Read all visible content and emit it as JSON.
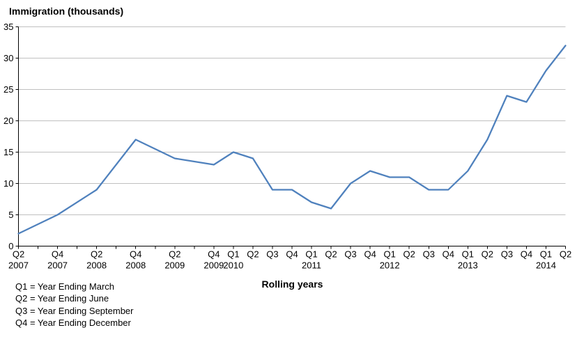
{
  "title": "Immigration (thousands)",
  "x_axis_title": "Rolling years",
  "footnotes": [
    "Q1 = Year Ending March",
    "Q2 = Year Ending June",
    "Q3 = Year Ending September",
    "Q4 = Year Ending December"
  ],
  "colors": {
    "line": "#4F81BD",
    "gridline": "#C0C0C0",
    "axis": "#000000",
    "text": "#000000",
    "background": "#FFFFFF"
  },
  "chart_data": {
    "type": "line",
    "title": "Immigration (thousands)",
    "xlabel": "Rolling years",
    "ylabel": "Immigration (thousands)",
    "ylim": [
      0,
      35
    ],
    "yticks": [
      0,
      5,
      10,
      15,
      20,
      25,
      30,
      35
    ],
    "grid": true,
    "legend": "none",
    "x_quarter_count": 29,
    "x_tick_labels": [
      {
        "q": "Q2",
        "year": "2007"
      },
      {
        "q": "",
        "year": ""
      },
      {
        "q": "Q4",
        "year": "2007"
      },
      {
        "q": "",
        "year": ""
      },
      {
        "q": "Q2",
        "year": "2008"
      },
      {
        "q": "",
        "year": ""
      },
      {
        "q": "Q4",
        "year": "2008"
      },
      {
        "q": "",
        "year": ""
      },
      {
        "q": "Q2",
        "year": "2009"
      },
      {
        "q": "",
        "year": ""
      },
      {
        "q": "Q4",
        "year": "2009"
      },
      {
        "q": "Q1",
        "year": "2010"
      },
      {
        "q": "Q2",
        "year": ""
      },
      {
        "q": "Q3",
        "year": ""
      },
      {
        "q": "Q4",
        "year": ""
      },
      {
        "q": "Q1",
        "year": "2011"
      },
      {
        "q": "Q2",
        "year": ""
      },
      {
        "q": "Q3",
        "year": ""
      },
      {
        "q": "Q4",
        "year": ""
      },
      {
        "q": "Q1",
        "year": "2012"
      },
      {
        "q": "Q2",
        "year": ""
      },
      {
        "q": "Q3",
        "year": ""
      },
      {
        "q": "Q4",
        "year": ""
      },
      {
        "q": "Q1",
        "year": "2013"
      },
      {
        "q": "Q2",
        "year": ""
      },
      {
        "q": "Q3",
        "year": ""
      },
      {
        "q": "Q4",
        "year": ""
      },
      {
        "q": "Q1",
        "year": "2014"
      },
      {
        "q": "Q2",
        "year": ""
      }
    ],
    "series": [
      {
        "name": "Immigration (thousands)",
        "points": [
          {
            "x": 0,
            "period": "Q2 2007",
            "value": 2
          },
          {
            "x": 2,
            "period": "Q4 2007",
            "value": 5
          },
          {
            "x": 4,
            "period": "Q2 2008",
            "value": 9
          },
          {
            "x": 6,
            "period": "Q4 2008",
            "value": 17
          },
          {
            "x": 8,
            "period": "Q2 2009",
            "value": 14
          },
          {
            "x": 10,
            "period": "Q4 2009",
            "value": 13
          },
          {
            "x": 11,
            "period": "Q1 2010",
            "value": 15
          },
          {
            "x": 12,
            "period": "Q2 2010",
            "value": 14
          },
          {
            "x": 13,
            "period": "Q3 2010",
            "value": 9
          },
          {
            "x": 14,
            "period": "Q4 2010",
            "value": 9
          },
          {
            "x": 15,
            "period": "Q1 2011",
            "value": 7
          },
          {
            "x": 16,
            "period": "Q2 2011",
            "value": 6
          },
          {
            "x": 17,
            "period": "Q3 2011",
            "value": 10
          },
          {
            "x": 18,
            "period": "Q4 2011",
            "value": 12
          },
          {
            "x": 19,
            "period": "Q1 2012",
            "value": 11
          },
          {
            "x": 20,
            "period": "Q2 2012",
            "value": 11
          },
          {
            "x": 21,
            "period": "Q3 2012",
            "value": 9
          },
          {
            "x": 22,
            "period": "Q4 2012",
            "value": 9
          },
          {
            "x": 23,
            "period": "Q1 2013",
            "value": 12
          },
          {
            "x": 24,
            "period": "Q2 2013",
            "value": 17
          },
          {
            "x": 25,
            "period": "Q3 2013",
            "value": 24
          },
          {
            "x": 26,
            "period": "Q4 2013",
            "value": 23
          },
          {
            "x": 27,
            "period": "Q1 2014",
            "value": 28
          },
          {
            "x": 28,
            "period": "Q2 2014",
            "value": 32
          }
        ]
      }
    ]
  }
}
